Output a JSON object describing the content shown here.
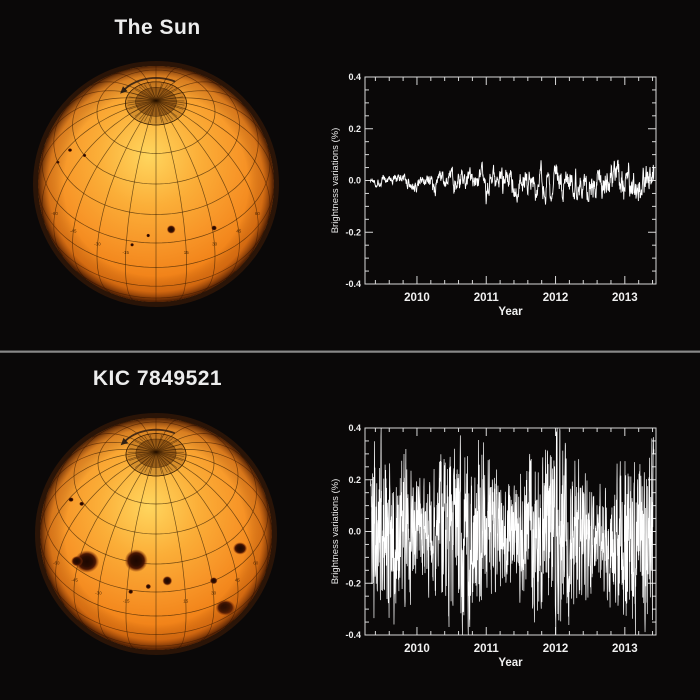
{
  "page": {
    "background": "#0a0808",
    "divider_color": "#9a9a9a"
  },
  "panels": [
    {
      "id": "sun",
      "title": "The Sun",
      "sphere": {
        "tilt_deg": 45,
        "surface_colors": [
          "#ffd65e",
          "#fbae38",
          "#f79427",
          "#f07f16",
          "#e06a0e"
        ],
        "grid_color": "rgba(45,25,0,0.65)",
        "grid_label_values": [
          "-60",
          "-45",
          "-30",
          "-15",
          "15",
          "30",
          "45",
          "60"
        ],
        "rotation_arrow": true,
        "spots": [
          {
            "lat": 22,
            "lon": 8,
            "size": 1.6
          },
          {
            "lat": 17,
            "lon": 31,
            "size": 1.0
          },
          {
            "lat": 13,
            "lon": -12,
            "size": 0.7
          },
          {
            "lat": 19,
            "lon": -4,
            "size": 0.7
          },
          {
            "lat": 40,
            "lon": -72,
            "size": 0.8
          },
          {
            "lat": 45,
            "lon": -59,
            "size": 0.7
          },
          {
            "lat": 30,
            "lon": -74,
            "size": 0.7
          }
        ]
      }
    },
    {
      "id": "kic",
      "title": "KIC 7849521",
      "sphere": {
        "tilt_deg": 45,
        "surface_colors": [
          "#ffd65e",
          "#fbae38",
          "#f79427",
          "#f07f16",
          "#e06a0e"
        ],
        "grid_color": "rgba(45,25,0,0.65)",
        "grid_label_values": [
          "-60",
          "-45",
          "-30",
          "-15",
          "15",
          "30",
          "45",
          "60"
        ],
        "rotation_arrow": true,
        "spots": [
          {
            "lat": 22,
            "lon": -40,
            "size": 4.5
          },
          {
            "lat": 19,
            "lon": -46,
            "size": 2.2
          },
          {
            "lat": 31,
            "lon": -11.5,
            "size": 4.2
          },
          {
            "lat": 23,
            "lon": 52,
            "size": 2.6
          },
          {
            "lat": 21,
            "lon": 6,
            "size": 1.8
          },
          {
            "lat": 15,
            "lon": 31,
            "size": 1.4
          },
          {
            "lat": -6,
            "lon": 37,
            "size": 3.6
          },
          {
            "lat": 18,
            "lon": -4,
            "size": 1.0
          },
          {
            "lat": 14,
            "lon": -13,
            "size": 0.9
          },
          {
            "lat": 40,
            "lon": -73,
            "size": 1.0
          },
          {
            "lat": 44,
            "lon": -63,
            "size": 0.9
          }
        ]
      }
    }
  ],
  "chart_data": [
    {
      "type": "line",
      "panel": "The Sun",
      "title": "",
      "xlabel": "Year",
      "ylabel": "Brightness variations (%)",
      "xlim": [
        2009.25,
        2013.45
      ],
      "ylim": [
        -0.4,
        0.4
      ],
      "xticks": [
        "2010",
        "2011",
        "2012",
        "2013"
      ],
      "yticks": [
        "0.4",
        "0.2",
        "0.0",
        "-0.2",
        "-0.4"
      ],
      "x_minor_step": 0.2,
      "y_minor_step": 0.05,
      "axis_color": "#d8d8d8",
      "series_color": "#ffffff",
      "line_width": 0.9,
      "description": "Quiet light curve: noise of ~±0.02% in 2009-2010 growing to ~±0.06% with dips to about -0.12% by 2012-2013",
      "signal": {
        "kind": "ar-noise-with-dips",
        "seed": 1337,
        "n": 950,
        "t_start": 2009.33,
        "t_end": 2013.42,
        "ar": 0.72,
        "innov": 0.8,
        "scale": 0.09,
        "env_base": 0.35,
        "env_growth": 1.05,
        "dip_ar": 0.93,
        "dip_innov": 0.3,
        "dip_thresh": 0.15,
        "dip_scale_base": 0.05,
        "dip_scale_growth": 0.28,
        "clip_lo": -0.135,
        "clip_hi": 0.1
      }
    },
    {
      "type": "line",
      "panel": "KIC 7849521",
      "title": "",
      "xlabel": "Year",
      "ylabel": "Brightness variations (%)",
      "xlim": [
        2009.25,
        2013.45
      ],
      "ylim": [
        -0.4,
        0.4
      ],
      "xticks": [
        "2010",
        "2011",
        "2012",
        "2013"
      ],
      "yticks": [
        "0.4",
        "0.2",
        "0.0",
        "-0.2",
        "-0.4"
      ],
      "x_minor_step": 0.2,
      "y_minor_step": 0.05,
      "axis_color": "#d8d8d8",
      "series_color": "#ffffff",
      "line_width": 0.7,
      "description": "Very active light curve: dense variations filling most of the -0.4% to +0.4% range for the whole 2009-2013 span",
      "signal": {
        "kind": "ar-noise-modulated",
        "seed": 2024,
        "n": 1500,
        "t_start": 2009.33,
        "t_end": 2013.42,
        "ar": 0.45,
        "innov": 2.0,
        "scale": 0.3,
        "mod_base": 0.78,
        "mod_depth": 0.22,
        "mod_cycles": 3.3,
        "mod_phase": 0.8,
        "clip_lo": -0.4,
        "clip_hi": 0.4
      }
    }
  ]
}
